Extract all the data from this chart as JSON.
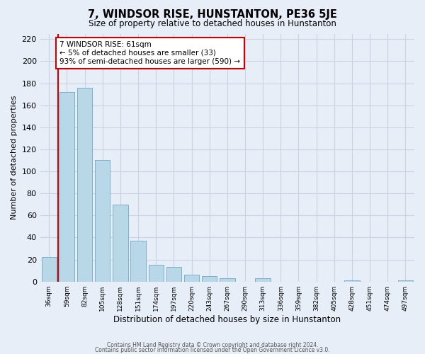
{
  "title": "7, WINDSOR RISE, HUNSTANTON, PE36 5JE",
  "subtitle": "Size of property relative to detached houses in Hunstanton",
  "xlabel": "Distribution of detached houses by size in Hunstanton",
  "ylabel": "Number of detached properties",
  "bin_labels": [
    "36sqm",
    "59sqm",
    "82sqm",
    "105sqm",
    "128sqm",
    "151sqm",
    "174sqm",
    "197sqm",
    "220sqm",
    "243sqm",
    "267sqm",
    "290sqm",
    "313sqm",
    "336sqm",
    "359sqm",
    "382sqm",
    "405sqm",
    "428sqm",
    "451sqm",
    "474sqm",
    "497sqm"
  ],
  "bar_heights": [
    22,
    172,
    176,
    110,
    70,
    37,
    15,
    13,
    6,
    5,
    3,
    0,
    3,
    0,
    0,
    0,
    0,
    1,
    0,
    0,
    1
  ],
  "bar_color": "#b8d8e8",
  "bar_edge_color": "#7ab0cc",
  "vline_x": 0.5,
  "vline_color": "#cc0000",
  "annotation_text": "7 WINDSOR RISE: 61sqm\n← 5% of detached houses are smaller (33)\n93% of semi-detached houses are larger (590) →",
  "annotation_box_color": "#ffffff",
  "annotation_box_edge": "#cc0000",
  "ylim": [
    0,
    225
  ],
  "yticks": [
    0,
    20,
    40,
    60,
    80,
    100,
    120,
    140,
    160,
    180,
    200,
    220
  ],
  "grid_color": "#c8d4e4",
  "background_color": "#e8eef8",
  "footer_line1": "Contains HM Land Registry data © Crown copyright and database right 2024.",
  "footer_line2": "Contains public sector information licensed under the Open Government Licence v3.0."
}
